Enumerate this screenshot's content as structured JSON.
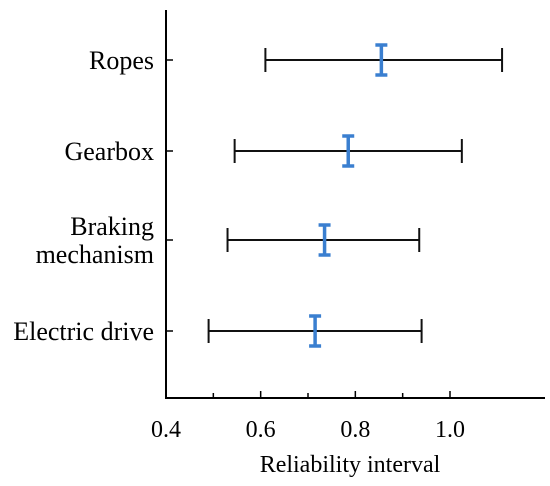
{
  "chart_data": {
    "type": "errorbar",
    "orientation": "horizontal",
    "xlabel": "Reliability interval",
    "xlim": [
      0.4,
      1.2
    ],
    "xticks": [
      0.4,
      0.6,
      0.8,
      1.0
    ],
    "xtick_labels": [
      "0.4",
      "0.6",
      "0.8",
      "1.0"
    ],
    "colors": {
      "outer": "#111111",
      "inner": "#3a7fd0"
    },
    "categories": [
      {
        "label_lines": [
          "Ropes"
        ],
        "outer": [
          0.61,
          1.11
        ],
        "inner": [
          0.835,
          0.875
        ]
      },
      {
        "label_lines": [
          "Gearbox"
        ],
        "outer": [
          0.545,
          1.025
        ],
        "inner": [
          0.765,
          0.805
        ]
      },
      {
        "label_lines": [
          "Braking",
          "mechanism"
        ],
        "outer": [
          0.53,
          0.935
        ],
        "inner": [
          0.715,
          0.755
        ]
      },
      {
        "label_lines": [
          "Electric drive"
        ],
        "outer": [
          0.49,
          0.94
        ],
        "inner": [
          0.695,
          0.735
        ]
      }
    ]
  }
}
